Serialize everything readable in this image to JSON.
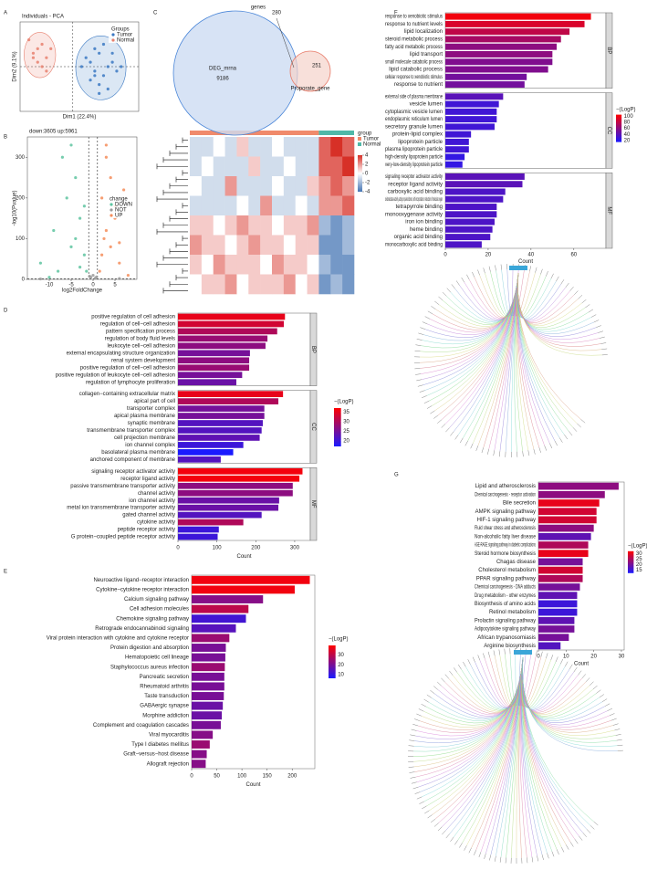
{
  "chart_data": [
    {
      "type": "scatter",
      "panel": "A",
      "title": "Individuals - PCA",
      "xlabel": "Dim1 (22.4%)",
      "ylabel": "Dim2 (9.1%)",
      "xlim": [
        -12,
        15
      ],
      "ylim": [
        -10,
        10
      ],
      "ellipse": true,
      "origin_lines": true,
      "legend": "upper right",
      "legend_title": "Groups",
      "series": [
        {
          "name": "Tumor",
          "color": "#3a78c2",
          "x": [
            3,
            5,
            6,
            8,
            4,
            7,
            9,
            5,
            6,
            10,
            2,
            7,
            8,
            4,
            6,
            11,
            5,
            9
          ],
          "values": [
            2,
            -1,
            3,
            0,
            -3,
            -2,
            1,
            4,
            -4,
            -1,
            0,
            5,
            -5,
            1,
            -6,
            0,
            -2,
            3
          ]
        },
        {
          "name": "Normal",
          "color": "#e8806f",
          "x": [
            -9,
            -7,
            -8,
            -6,
            -10,
            -7,
            -5,
            -8,
            -6,
            -9
          ],
          "values": [
            3,
            5,
            1,
            2,
            6,
            0,
            4,
            4,
            -1,
            2
          ]
        }
      ]
    },
    {
      "type": "scatter",
      "panel": "B",
      "title": "down:3605 up:5961",
      "xlabel": "log2FoldChange",
      "ylabel": "-log10(Pvalue)",
      "xlim": [
        -15,
        10
      ],
      "ylim": [
        0,
        350
      ],
      "xticks": [
        -10,
        -5,
        0,
        5
      ],
      "yticks": [
        0,
        100,
        200,
        300
      ],
      "cutoff_x": [
        -1,
        1
      ],
      "cutoff_y": 1.3,
      "legend": "right",
      "legend_title": "change",
      "series": [
        {
          "name": "DOWN",
          "color": "#5ec4a0",
          "x": [
            -12,
            -9,
            -7,
            -6,
            -5,
            -4,
            -3,
            -3,
            -2,
            -2,
            -1.5,
            -8,
            -10,
            -5,
            -4
          ],
          "values": [
            40,
            120,
            300,
            200,
            80,
            250,
            150,
            30,
            60,
            180,
            20,
            20,
            5,
            330,
            100
          ]
        },
        {
          "name": "NOT",
          "color": "#9a9a9a",
          "x": [
            -0.5,
            0,
            0.5,
            -0.8,
            0.8,
            -12,
            6
          ],
          "values": [
            5,
            10,
            3,
            8,
            6,
            1,
            2
          ]
        },
        {
          "name": "UP",
          "color": "#f58d5b",
          "x": [
            1.5,
            2,
            2,
            3,
            3,
            4,
            4,
            5,
            6,
            7,
            8,
            3,
            5,
            2.5,
            6
          ],
          "values": [
            20,
            60,
            200,
            120,
            300,
            80,
            250,
            150,
            40,
            220,
            10,
            330,
            180,
            100,
            90
          ]
        }
      ]
    },
    {
      "type": "heatmap",
      "legend_title": "group",
      "groups": [
        {
          "name": "Tumor",
          "color": "#f08a6b",
          "count": 11
        },
        {
          "name": "Normal",
          "color": "#4fb8a8",
          "count": 3
        }
      ],
      "colorbar": {
        "lim": [
          -4,
          4
        ],
        "ticks": [
          4,
          2,
          0,
          -2,
          -4
        ],
        "low": "#4575b4",
        "mid": "#ffffff",
        "high": "#d73027"
      },
      "matrix": [
        [
          -1,
          -1,
          0,
          -1,
          1,
          -1,
          -1,
          0,
          -1,
          -1,
          -1,
          3,
          4,
          3
        ],
        [
          -1,
          0,
          -1,
          -1,
          -1,
          1,
          -1,
          -1,
          0,
          -1,
          -1,
          3,
          3,
          4
        ],
        [
          0,
          -1,
          -1,
          2,
          -1,
          -1,
          -1,
          0,
          -1,
          -1,
          1,
          2,
          3,
          2
        ],
        [
          -1,
          -1,
          -1,
          -1,
          0,
          -1,
          2,
          -1,
          -1,
          0,
          -1,
          2,
          2,
          3
        ],
        [
          1,
          1,
          0,
          1,
          2,
          1,
          1,
          0,
          1,
          1,
          2,
          -2,
          -3,
          -2
        ],
        [
          2,
          1,
          1,
          0,
          1,
          2,
          1,
          1,
          0,
          1,
          1,
          -3,
          -3,
          -2
        ],
        [
          1,
          0,
          2,
          1,
          1,
          1,
          0,
          2,
          1,
          1,
          0,
          -2,
          -3,
          -3
        ],
        [
          0,
          1,
          1,
          2,
          0,
          1,
          1,
          1,
          2,
          0,
          1,
          -3,
          -2,
          -3
        ]
      ]
    },
    {
      "type": "venn",
      "panel": "C",
      "title": "genes",
      "sets": [
        {
          "name": "DEG_mrna",
          "color": "#4a86d8",
          "fill": "#cddcf2",
          "only": 9186
        },
        {
          "name": "Proporate_gene",
          "color": "#e8806f",
          "fill": "#f5d3cb",
          "only": 251
        }
      ],
      "intersection": 280
    },
    {
      "type": "hbar",
      "panel": "D",
      "xlabel": "Count",
      "xlim": [
        0,
        340
      ],
      "xticks": [
        0,
        100,
        200,
        300
      ],
      "colorbar": {
        "title": "−(LogP)",
        "lim": [
          17,
          37
        ],
        "ticks": [
          35,
          30,
          25,
          20
        ],
        "low": "#1a1aff",
        "high": "#ff0000"
      },
      "facets": [
        {
          "label": "BP",
          "categories": [
            "positive regulation of cell adhesion",
            "regulation of cell−cell adhesion",
            "pattern specification process",
            "regulation of body fluid levels",
            "leukocyte cell−cell adhesion",
            "external encapsulating structure organization",
            "renal system development",
            "positive regulation of cell−cell adhesion",
            "positive regulation of leukocyte cell−cell adhesion",
            "regulation of lymphocyte proliferation"
          ],
          "values": [
            275,
            272,
            255,
            230,
            225,
            185,
            183,
            183,
            165,
            150
          ],
          "color_values": [
            35,
            33,
            30,
            28,
            27,
            25,
            27,
            28,
            25,
            24
          ]
        },
        {
          "label": "CC",
          "categories": [
            "collagen−containing extracellular matrix",
            "apical part of cell",
            "transporter complex",
            "apical plasma membrane",
            "synaptic membrane",
            "transmembrane transporter complex",
            "cell projection membrane",
            "ion channel complex",
            "basolateral plasma membrane",
            "anchored component of membrane"
          ],
          "values": [
            270,
            258,
            222,
            222,
            218,
            215,
            210,
            168,
            142,
            110
          ],
          "color_values": [
            35,
            30,
            25,
            25,
            22,
            22,
            23,
            20,
            17,
            22
          ]
        },
        {
          "label": "MF",
          "categories": [
            "signaling receptor activator activity",
            "receptor ligand activity",
            "passive transmembrane transporter activity",
            "channel activity",
            "ion channel activity",
            "metal ion transmembrane transporter activity",
            "gated channel activity",
            "cytokine activity",
            "peptide receptor activity",
            "G protein−coupled peptide receptor activity"
          ],
          "values": [
            320,
            312,
            295,
            295,
            260,
            258,
            215,
            168,
            105,
            102
          ],
          "color_values": [
            36,
            36,
            27,
            27,
            24,
            24,
            22,
            30,
            20,
            20
          ]
        }
      ]
    },
    {
      "type": "hbar",
      "panel": "E",
      "xlabel": "Count",
      "xlim": [
        0,
        245
      ],
      "xticks": [
        0,
        50,
        100,
        150,
        200
      ],
      "colorbar": {
        "title": "−(LogP)",
        "lim": [
          6,
          40
        ],
        "ticks": [
          30,
          20,
          10
        ],
        "low": "#1a1aff",
        "high": "#ff0000"
      },
      "categories": [
        "Neuroactive ligand−receptor interaction",
        "Cytokine−cytokine receptor interaction",
        "Calcium signaling pathway",
        "Cell adhesion molecules",
        "Chemokine signaling pathway",
        "Retrograde endocannabinoid signaling",
        "Viral protein interaction with cytokine and cytokine receptor",
        "Protein digestion and absorption",
        "Hematopoietic cell lineage",
        "Staphylococcus aureus infection",
        "Pancreatic secretion",
        "Rheumatoid arthritis",
        "Taste transduction",
        "GABAergic synapse",
        "Morphine addiction",
        "Complement and coagulation cascades",
        "Viral myocarditis",
        "Type I diabetes mellitus",
        "Graft−versus−host disease",
        "Allograft rejection"
      ],
      "values": [
        235,
        205,
        142,
        113,
        108,
        88,
        75,
        68,
        67,
        66,
        65,
        65,
        64,
        62,
        60,
        58,
        42,
        36,
        30,
        28
      ],
      "color_values": [
        38,
        38,
        22,
        30,
        12,
        15,
        25,
        20,
        20,
        25,
        20,
        20,
        20,
        18,
        18,
        20,
        22,
        25,
        22,
        22
      ]
    },
    {
      "type": "hbar",
      "panel": "F",
      "xlabel": "Count",
      "xlim": [
        0,
        75
      ],
      "xticks": [
        0,
        20,
        40,
        60
      ],
      "colorbar": {
        "title": "−(LogP)",
        "lim": [
          15,
          105
        ],
        "ticks": [
          100,
          80,
          60,
          40,
          20
        ],
        "low": "#1a1aff",
        "high": "#ff0000"
      },
      "facets": [
        {
          "label": "BP",
          "categories": [
            "response to xenobiotic stimulus",
            "response to nutrient levels",
            "lipid localization",
            "steroid metabolic process",
            "fatty acid metabolic process",
            "lipid transport",
            "small molecule catabolic process",
            "lipid catabolic process",
            "cellular response to xenobiotic stimulus",
            "response to nutrient"
          ],
          "values": [
            68,
            65,
            58,
            54,
            52,
            50,
            50,
            48,
            38,
            37
          ],
          "color_values": [
            100,
            90,
            80,
            70,
            60,
            60,
            55,
            55,
            50,
            50
          ]
        },
        {
          "label": "CC",
          "categories": [
            "external side of plasma membrane",
            "vesicle lumen",
            "cytoplasmic vesicle lumen",
            "endoplasmic reticulum lumen",
            "secretory granule lumen",
            "protein-lipid complex",
            "lipoprotein particle",
            "plasma lipoprotein particle",
            "high-density lipoprotein particle",
            "very-low-density lipoprotein particle"
          ],
          "values": [
            27,
            25,
            24,
            24,
            23,
            12,
            11,
            11,
            9,
            8
          ],
          "color_values": [
            40,
            30,
            30,
            30,
            30,
            30,
            30,
            30,
            25,
            25
          ]
        },
        {
          "label": "MF",
          "categories": [
            "signaling receptor activator activity",
            "receptor ligand activity",
            "carboxylic acid binding",
            "oxidoreductase activity, acting on paired donors, with incorporation or reduction of molecular oxygen",
            "tetrapyrrole binding",
            "monooxygenase activity",
            "iron ion binding",
            "heme binding",
            "organic acid binding",
            "monocarboxylic acid binding"
          ],
          "values": [
            37,
            36,
            28,
            27,
            24,
            24,
            23,
            22,
            21,
            17
          ],
          "color_values": [
            40,
            40,
            35,
            35,
            35,
            35,
            35,
            35,
            35,
            35
          ]
        }
      ]
    },
    {
      "type": "hbar",
      "panel": "G",
      "xlabel": "Count",
      "xlim": [
        0,
        31
      ],
      "xticks": [
        0,
        10,
        20,
        30
      ],
      "colorbar": {
        "title": "−(LogP)",
        "lim": [
          12,
          32
        ],
        "ticks": [
          30,
          25,
          20,
          15
        ],
        "low": "#1a1aff",
        "high": "#ff0000"
      },
      "categories": [
        "Lipid and atherosclerosis",
        "Chemical carcinogenesis - receptor activation",
        "Bile secretion",
        "AMPK signaling pathway",
        "HIF-1 signaling pathway",
        "Fluid shear stress and atherosclerosis",
        "Non-alcoholic fatty liver disease",
        "AGE-RAGE signaling pathway in diabetic complications",
        "Steroid hormone biosynthesis",
        "Chagas disease",
        "Cholesterol metabolism",
        "PPAR signaling pathway",
        "Chemical carcinogenesis - DNA adducts",
        "Drug metabolism - other enzymes",
        "Biosynthesis of amino acids",
        "Retinol metabolism",
        "Prolactin signaling pathway",
        "Adipocytokine signaling pathway",
        "African trypanosomiasis",
        "Arginine biosynthesis"
      ],
      "values": [
        29,
        24,
        22,
        21,
        21,
        20,
        19,
        18,
        18,
        16,
        16,
        16,
        15,
        14,
        14,
        14,
        13,
        13,
        11,
        8
      ],
      "color_values": [
        22,
        22,
        30,
        28,
        28,
        22,
        18,
        25,
        30,
        20,
        28,
        25,
        20,
        18,
        15,
        15,
        18,
        20,
        20,
        17
      ]
    }
  ]
}
